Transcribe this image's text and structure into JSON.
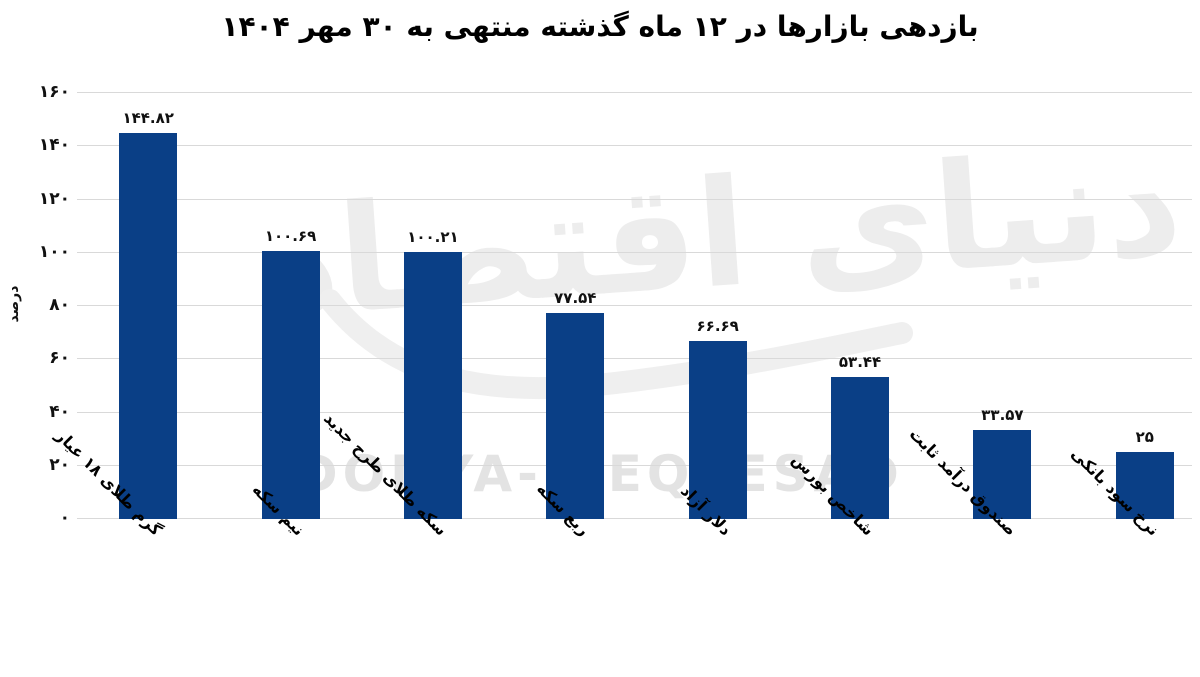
{
  "title": "بازدهی بازارها در ۱۲ ماه گذشته منتهی به ۳۰ مهر ۱۴۰۴",
  "watermark": {
    "latin": "DONYA-E-EQTESAD",
    "persian": "دنیای اقتصاد"
  },
  "chart_data": {
    "type": "bar",
    "title": "بازدهی بازارها در ۱۲ ماه گذشته منتهی به ۳۰ مهر ۱۴۰۴",
    "xlabel": "",
    "ylabel": "درصد",
    "ylim": [
      0,
      160
    ],
    "ytick_step": 20,
    "ytick_labels_fa": [
      "۰",
      "۲۰",
      "۴۰",
      "۶۰",
      "۸۰",
      "۱۰۰",
      "۱۲۰",
      "۱۴۰",
      "۱۶۰"
    ],
    "grid": true,
    "legend_position": "none",
    "categories": [
      "گرم طلای ۱۸ عیار",
      "نیم سکه",
      "سکه طلای طرح جدید",
      "ربع سکه",
      "دلار آزاد",
      "شاخص بورس",
      "صندوق درآمد ثابت",
      "نرخ سود بانکی"
    ],
    "values": [
      144.82,
      100.69,
      100.21,
      77.54,
      66.69,
      53.44,
      33.57,
      25
    ],
    "value_labels_fa": [
      "۱۴۴.۸۲",
      "۱۰۰.۶۹",
      "۱۰۰.۲۱",
      "۷۷.۵۴",
      "۶۶.۶۹",
      "۵۳.۴۴",
      "۳۳.۵۷",
      "۲۵"
    ],
    "bar_color": "#0a3f86",
    "grid_color": "#d9d9d9",
    "value_label_color": "#111111",
    "watermark_color": "#ededed"
  }
}
